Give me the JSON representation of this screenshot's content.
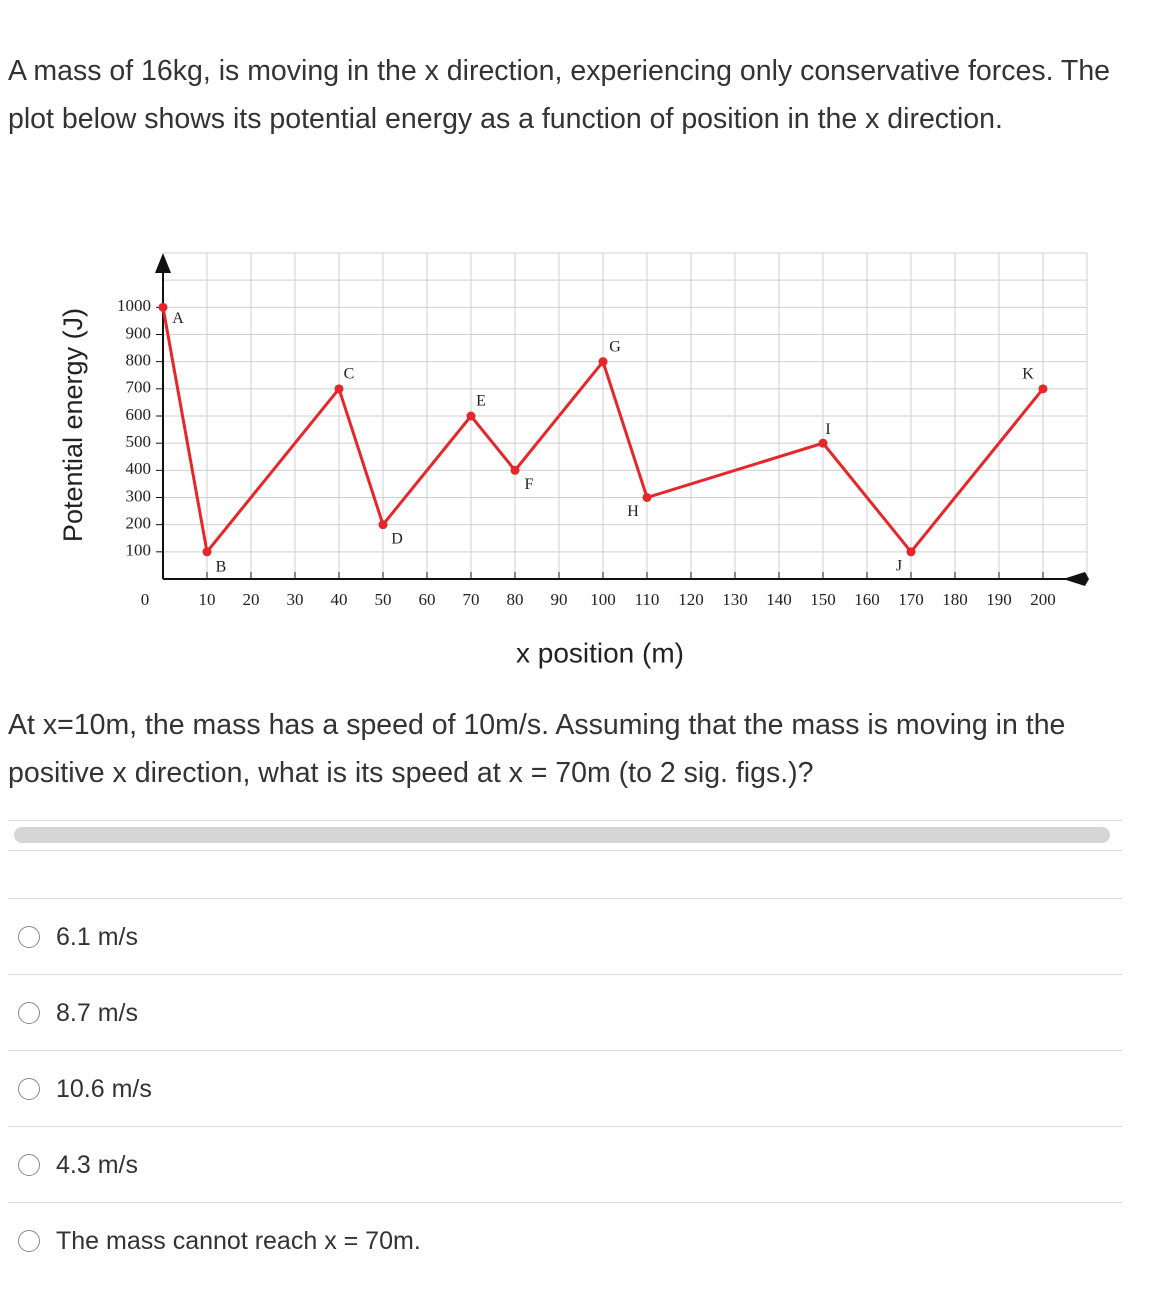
{
  "question": {
    "intro": "A mass of 16kg, is moving in the x direction, experiencing only conservative forces. The plot below shows its potential energy as a function of position in the x direction.",
    "prompt": "At x=10m, the mass has a speed of 10m/s. Assuming that the mass is moving in the positive x direction, what is its speed at x = 70m (to 2 sig. figs.)?"
  },
  "chart_data": {
    "type": "line",
    "x_label": "x position (m)",
    "y_label": "Potential energy (J)",
    "x": [
      0,
      10,
      40,
      50,
      70,
      80,
      100,
      110,
      150,
      170,
      200
    ],
    "values": [
      1000,
      100,
      700,
      200,
      600,
      400,
      800,
      300,
      500,
      100,
      700
    ],
    "point_labels": [
      "A",
      "B",
      "C",
      "D",
      "E",
      "F",
      "G",
      "H",
      "I",
      "J",
      "K"
    ],
    "color": "#e8262a",
    "grid": true,
    "xlim": [
      0,
      210
    ],
    "ylim": [
      0,
      1200
    ],
    "xticks": [
      0,
      10,
      20,
      30,
      40,
      50,
      60,
      70,
      80,
      90,
      100,
      110,
      120,
      130,
      140,
      150,
      160,
      170,
      180,
      190,
      200
    ],
    "yticks": [
      100,
      200,
      300,
      400,
      500,
      600,
      700,
      800,
      900,
      1000
    ]
  },
  "options": [
    "6.1 m/s",
    "8.7 m/s",
    "10.6 m/s",
    "4.3 m/s",
    "The mass cannot reach x = 70m."
  ]
}
